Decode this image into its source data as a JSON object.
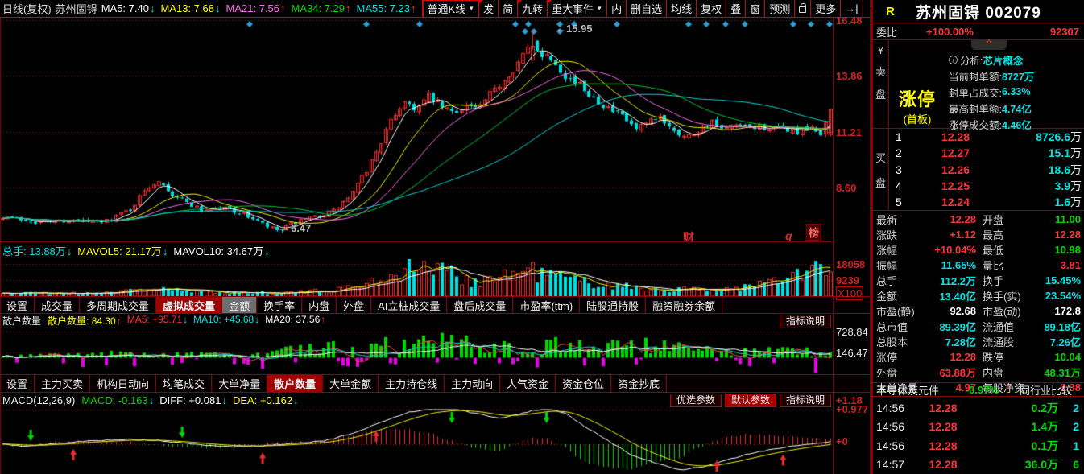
{
  "palette": {
    "red": "#ff3434",
    "green": "#00d800",
    "cyan": "#00e4e4",
    "yellow": "#ffff00",
    "white": "#ffffff",
    "magenta": "#ff6ef0",
    "gray": "#c8c8c8"
  },
  "topbar": {
    "period": "日线(复权)",
    "stock": "苏州固锝",
    "mas": [
      {
        "label": "MA5:",
        "value": "7.40",
        "color": "white",
        "arrow": "↓",
        "acolor": "cyan"
      },
      {
        "label": "MA13:",
        "value": "7.68",
        "color": "yellow",
        "arrow": "↓",
        "acolor": "cyan"
      },
      {
        "label": "MA21:",
        "value": "7.56",
        "color": "magenta",
        "arrow": "↑",
        "acolor": "red"
      },
      {
        "label": "MA34:",
        "value": "7.29",
        "color": "green",
        "arrow": "↑",
        "acolor": "red"
      },
      {
        "label": "MA55:",
        "value": "7.23",
        "color": "cyan",
        "arrow": "↑",
        "acolor": "red"
      }
    ],
    "buttons": [
      {
        "label": "普通K线",
        "caret": true,
        "boxed": true
      },
      {
        "label": "发",
        "corner": true
      },
      {
        "label": "简"
      },
      {
        "label": "九转",
        "corner": true
      },
      {
        "label": "重大事件",
        "corner": true,
        "caret": true
      },
      {
        "label": "内"
      },
      {
        "label": "删自选"
      },
      {
        "label": "均线"
      },
      {
        "label": "复权"
      },
      {
        "label": "叠"
      },
      {
        "label": "窗"
      },
      {
        "label": "预测"
      },
      {
        "label": "",
        "lock": true
      },
      {
        "label": "更多"
      },
      {
        "label": "→|"
      },
      {
        "label": "",
        "caret": true
      }
    ]
  },
  "vol_header": [
    {
      "label": "总手:",
      "value": "13.88万",
      "color": "cyan",
      "arrow": "↓",
      "acolor": "cyan"
    },
    {
      "label": "MAVOL5:",
      "value": "21.17万",
      "color": "yellow",
      "arrow": "↓",
      "acolor": "cyan"
    },
    {
      "label": "MAVOL10:",
      "value": "34.67万",
      "color": "white",
      "arrow": "↓",
      "acolor": "cyan"
    }
  ],
  "retail_header": {
    "title": "散户数量",
    "items": [
      {
        "label": "散户数量:",
        "value": "84.30",
        "color": "yellow",
        "arrow": "↑",
        "acolor": "red"
      },
      {
        "label": "MA5:",
        "value": "+95.71",
        "color": "red",
        "arrow": "↓",
        "acolor": "cyan"
      },
      {
        "label": "MA10:",
        "value": "+45.68",
        "color": "cyan",
        "arrow": "↓",
        "acolor": "cyan"
      },
      {
        "label": "MA20:",
        "value": "37.56",
        "color": "white",
        "arrow": "↑",
        "acolor": "red"
      }
    ],
    "help": "指标说明"
  },
  "macd_header": {
    "title": "MACD(12,26,9)",
    "items": [
      {
        "label": "MACD:",
        "value": "-0.163",
        "color": "green",
        "arrow": "↓",
        "acolor": "cyan"
      },
      {
        "label": "DIFF:",
        "value": "+0.081",
        "color": "white",
        "arrow": "↓",
        "acolor": "cyan"
      },
      {
        "label": "DEA:",
        "value": "+0.162",
        "color": "yellow",
        "arrow": "↓",
        "acolor": "cyan"
      }
    ],
    "buttons": [
      {
        "label": "优选参数"
      },
      {
        "label": "默认参数",
        "active": true
      },
      {
        "label": "指标说明"
      }
    ]
  },
  "tabs1": [
    {
      "label": "设置"
    },
    {
      "label": "成交量"
    },
    {
      "label": "多周期成交量"
    },
    {
      "label": "虚拟成交量",
      "active": true
    },
    {
      "label": "金额",
      "gray": true
    },
    {
      "label": "换手率"
    },
    {
      "label": "内盘"
    },
    {
      "label": "外盘"
    },
    {
      "label": "AI立桩成交量"
    },
    {
      "label": "盘后成交量"
    },
    {
      "label": "市盈率(ttm)"
    },
    {
      "label": "陆股通持股"
    },
    {
      "label": "融资融劵余额"
    }
  ],
  "tabs2": [
    {
      "label": "设置"
    },
    {
      "label": "主力买卖"
    },
    {
      "label": "机构日动向"
    },
    {
      "label": "均笔成交"
    },
    {
      "label": "大单净量"
    },
    {
      "label": "散户数量",
      "active": true
    },
    {
      "label": "大单金额"
    },
    {
      "label": "主力持仓线"
    },
    {
      "label": "主力动向"
    },
    {
      "label": "人气资金"
    },
    {
      "label": "资金仓位"
    },
    {
      "label": "资金抄底"
    }
  ],
  "axes": {
    "main": [
      "16.48",
      "13.86",
      "11.21",
      "8.60"
    ],
    "vol": [
      "18058",
      "9239",
      "X100"
    ],
    "retail": [
      "728.84",
      "146.47"
    ],
    "macd": [
      "+1.18",
      "+0.977",
      "+0"
    ]
  },
  "annotations": {
    "high": "←15.95",
    "low": "←6.47"
  },
  "watermarks": {
    "cai": "财",
    "q": "q",
    "bang": "榜"
  },
  "right": {
    "r_badge": "R",
    "title": "苏州固锝 002079",
    "weibi": {
      "label": "委比",
      "value": "+100.00%",
      "num": "92307"
    },
    "sell": {
      "currency": "¥",
      "strip": [
        "卖",
        "盘"
      ],
      "limit": "涨停",
      "board": "(首板)",
      "collapse": "^",
      "analysis": [
        {
          "l": "分析:",
          "v": "芯片概念",
          "info": true
        },
        {
          "l": "当前封单额:",
          "v": "8727万"
        },
        {
          "l": "封单占成交:",
          "v": "6.33%"
        },
        {
          "l": "最高封单额:",
          "v": "4.74亿"
        },
        {
          "l": "涨停成交额:",
          "v": "4.46亿"
        }
      ]
    },
    "buy": {
      "strip": [
        "买",
        "盘"
      ],
      "rows": [
        {
          "n": "1",
          "price": "12.28",
          "vol": "8726.6",
          "unit": "万"
        },
        {
          "n": "2",
          "price": "12.27",
          "vol": "15.1",
          "unit": "万"
        },
        {
          "n": "3",
          "price": "12.26",
          "vol": "18.6",
          "unit": "万"
        },
        {
          "n": "4",
          "price": "12.25",
          "vol": "3.9",
          "unit": "万"
        },
        {
          "n": "5",
          "price": "12.24",
          "vol": "1.6",
          "unit": "万"
        }
      ]
    },
    "stats": [
      {
        "l1": "最新",
        "v1": "12.28",
        "c1": "red",
        "l2": "开盘",
        "v2": "11.00",
        "c2": "green"
      },
      {
        "l1": "涨跌",
        "v1": "+1.12",
        "c1": "red",
        "l2": "最高",
        "v2": "12.28",
        "c2": "red"
      },
      {
        "l1": "涨幅",
        "v1": "+10.04%",
        "c1": "red",
        "l2": "最低",
        "v2": "10.98",
        "c2": "green"
      },
      {
        "l1": "振幅",
        "v1": "11.65%",
        "c1": "cyan",
        "l2": "量比",
        "v2": "3.81",
        "c2": "red"
      },
      {
        "l1": "总手",
        "v1": "112.2万",
        "c1": "cyan",
        "l2": "换手",
        "v2": "15.45%",
        "c2": "cyan"
      },
      {
        "l1": "金额",
        "v1": "13.40亿",
        "c1": "cyan",
        "l2": "换手(实)",
        "v2": "23.54%",
        "c2": "cyan"
      },
      {
        "l1": "市盈(静)",
        "v1": "92.68",
        "c1": "white",
        "l2": "市盈(动)",
        "v2": "172.8",
        "c2": "white"
      },
      {
        "l1": "总市值",
        "v1": "89.39亿",
        "c1": "cyan",
        "l2": "流通值",
        "v2": "89.18亿",
        "c2": "cyan"
      },
      {
        "l1": "总股本",
        "v1": "7.28亿",
        "c1": "cyan",
        "l2": "流通股",
        "v2": "7.26亿",
        "c2": "cyan"
      },
      {
        "l1": "涨停",
        "v1": "12.28",
        "c1": "red",
        "l2": "跌停",
        "v2": "10.04",
        "c2": "green"
      },
      {
        "l1": "外盘",
        "v1": "63.88万",
        "c1": "red",
        "l2": "内盘",
        "v2": "48.31万",
        "c2": "green"
      },
      {
        "l1": "大单净量",
        "v1": "4.97",
        "c1": "red",
        "l2": "每股净资",
        "v2": "2.38",
        "c2": "red"
      }
    ],
    "sector": {
      "name": "半导体及元件",
      "change": "-0.97%",
      "compare": "同行业比较"
    },
    "ticks": [
      {
        "time": "14:56",
        "price": "12.28",
        "vol": "0.2万",
        "count": "2",
        "cc": "cyan"
      },
      {
        "time": "14:56",
        "price": "12.28",
        "vol": "1.4万",
        "count": "2",
        "cc": "cyan"
      },
      {
        "time": "14:56",
        "price": "12.28",
        "vol": "0.1万",
        "count": "1",
        "cc": "cyan"
      },
      {
        "time": "14:57",
        "price": "12.28",
        "vol": "36.0万",
        "count": "6",
        "cc": "green"
      }
    ]
  },
  "chart": {
    "grid_prices": [
      16.48,
      13.86,
      11.21,
      8.6
    ],
    "high_label": 15.95,
    "low_label": 6.47,
    "last_close": 12.28,
    "diamond_color": "#2f9fd6",
    "diamonds_row1": [
      310,
      455,
      521,
      640,
      656,
      695,
      713,
      766,
      855,
      877,
      901,
      925,
      985,
      1007,
      1030
    ],
    "diamonds_row2": [
      652,
      663,
      695
    ],
    "sell_arrows": [
      0.035,
      0.215,
      0.545,
      0.655
    ],
    "buy_arrows": [
      0.085,
      0.315,
      0.45,
      0.86,
      0.945
    ],
    "price_anchors": [
      [
        0,
        7.25
      ],
      [
        0.04,
        7.0
      ],
      [
        0.08,
        7.05
      ],
      [
        0.12,
        6.95
      ],
      [
        0.155,
        7.6
      ],
      [
        0.175,
        8.6
      ],
      [
        0.19,
        9.0
      ],
      [
        0.205,
        8.3
      ],
      [
        0.24,
        7.55
      ],
      [
        0.27,
        7.65
      ],
      [
        0.3,
        7.2
      ],
      [
        0.32,
        6.75
      ],
      [
        0.335,
        6.55
      ],
      [
        0.35,
        6.9
      ],
      [
        0.38,
        7.25
      ],
      [
        0.4,
        7.5
      ],
      [
        0.42,
        8.2
      ],
      [
        0.44,
        9.4
      ],
      [
        0.455,
        10.6
      ],
      [
        0.47,
        11.8
      ],
      [
        0.485,
        12.7
      ],
      [
        0.5,
        12.3
      ],
      [
        0.515,
        12.9
      ],
      [
        0.53,
        12.4
      ],
      [
        0.545,
        12.1
      ],
      [
        0.56,
        12.5
      ],
      [
        0.575,
        12.3
      ],
      [
        0.59,
        13.0
      ],
      [
        0.61,
        13.9
      ],
      [
        0.625,
        14.6
      ],
      [
        0.64,
        15.4
      ],
      [
        0.652,
        14.9
      ],
      [
        0.665,
        14.7
      ],
      [
        0.68,
        13.9
      ],
      [
        0.7,
        13.3
      ],
      [
        0.72,
        12.7
      ],
      [
        0.735,
        12.2
      ],
      [
        0.75,
        11.9
      ],
      [
        0.765,
        11.3
      ],
      [
        0.78,
        11.6
      ],
      [
        0.795,
        11.9
      ],
      [
        0.81,
        11.4
      ],
      [
        0.825,
        10.95
      ],
      [
        0.84,
        11.3
      ],
      [
        0.855,
        11.7
      ],
      [
        0.87,
        11.25
      ],
      [
        0.885,
        11.5
      ],
      [
        0.9,
        11.35
      ],
      [
        0.915,
        11.5
      ],
      [
        0.93,
        11.3
      ],
      [
        0.945,
        11.4
      ],
      [
        0.96,
        11.2
      ],
      [
        0.975,
        11.35
      ],
      [
        0.99,
        11.15
      ],
      [
        1,
        12.28
      ]
    ],
    "vol_env": [
      [
        0,
        1800
      ],
      [
        0.1,
        1600
      ],
      [
        0.155,
        3000
      ],
      [
        0.19,
        4800
      ],
      [
        0.22,
        2600
      ],
      [
        0.3,
        2000
      ],
      [
        0.36,
        2200
      ],
      [
        0.4,
        3500
      ],
      [
        0.43,
        6000
      ],
      [
        0.46,
        10000
      ],
      [
        0.49,
        15500
      ],
      [
        0.52,
        16500
      ],
      [
        0.545,
        12000
      ],
      [
        0.57,
        8500
      ],
      [
        0.6,
        10500
      ],
      [
        0.63,
        14500
      ],
      [
        0.66,
        12500
      ],
      [
        0.69,
        9000
      ],
      [
        0.72,
        7000
      ],
      [
        0.76,
        5000
      ],
      [
        0.8,
        3800
      ],
      [
        0.84,
        3600
      ],
      [
        0.88,
        4200
      ],
      [
        0.91,
        6000
      ],
      [
        0.94,
        9000
      ],
      [
        0.965,
        12000
      ],
      [
        0.985,
        16000
      ],
      [
        1,
        13000
      ]
    ],
    "retail_env": [
      [
        0,
        60
      ],
      [
        0.15,
        120
      ],
      [
        0.3,
        90
      ],
      [
        0.35,
        200
      ],
      [
        0.42,
        350
      ],
      [
        0.5,
        380
      ],
      [
        0.55,
        420
      ],
      [
        0.6,
        380
      ],
      [
        0.65,
        350
      ],
      [
        0.7,
        300
      ],
      [
        0.75,
        380
      ],
      [
        0.8,
        300
      ],
      [
        0.85,
        220
      ],
      [
        0.9,
        200
      ],
      [
        0.95,
        180
      ],
      [
        1,
        150
      ]
    ],
    "macd_anchors": [
      [
        0,
        0.0
      ],
      [
        0.03,
        -0.06
      ],
      [
        0.07,
        0.03
      ],
      [
        0.11,
        0.1
      ],
      [
        0.15,
        0.14
      ],
      [
        0.19,
        0.1
      ],
      [
        0.23,
        0.0
      ],
      [
        0.27,
        -0.07
      ],
      [
        0.31,
        -0.05
      ],
      [
        0.35,
        0.02
      ],
      [
        0.39,
        0.1
      ],
      [
        0.43,
        0.35
      ],
      [
        0.46,
        0.65
      ],
      [
        0.49,
        0.9
      ],
      [
        0.52,
        1.02
      ],
      [
        0.55,
        0.98
      ],
      [
        0.575,
        0.85
      ],
      [
        0.6,
        0.74
      ],
      [
        0.62,
        0.82
      ],
      [
        0.64,
        0.95
      ],
      [
        0.66,
        1.0
      ],
      [
        0.68,
        0.88
      ],
      [
        0.7,
        0.55
      ],
      [
        0.73,
        0.12
      ],
      [
        0.76,
        -0.3
      ],
      [
        0.79,
        -0.55
      ],
      [
        0.82,
        -0.72
      ],
      [
        0.85,
        -0.62
      ],
      [
        0.875,
        -0.45
      ],
      [
        0.9,
        -0.28
      ],
      [
        0.925,
        -0.16
      ],
      [
        0.95,
        -0.07
      ],
      [
        0.975,
        0.0
      ],
      [
        1,
        0.08
      ]
    ]
  }
}
